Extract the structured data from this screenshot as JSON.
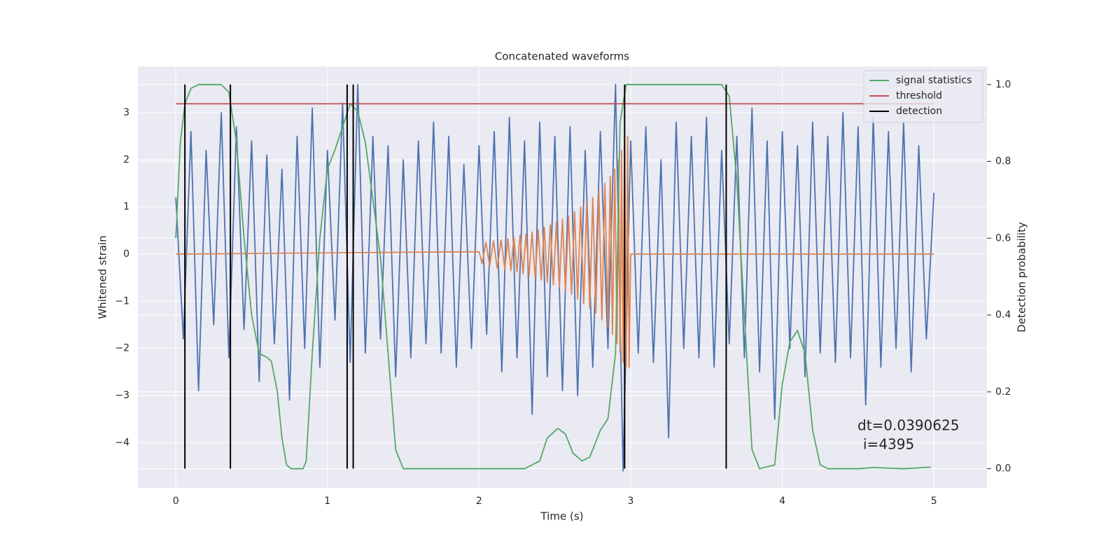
{
  "chart_data": {
    "type": "line",
    "title": "Concatenated waveforms",
    "xlabel": "Time (s)",
    "ylabel": "Whitened strain",
    "y2label": "Detection probability",
    "xlim": [
      -0.25,
      5.35
    ],
    "xticks": [
      0,
      1,
      2,
      3,
      4,
      5
    ],
    "ylim": [
      -4.96,
      3.98
    ],
    "yticks": [
      {
        "value": -4,
        "label": "−4"
      },
      {
        "value": -3,
        "label": "−3"
      },
      {
        "value": -2,
        "label": "−2"
      },
      {
        "value": -1,
        "label": "−1"
      },
      0,
      1,
      2,
      3
    ],
    "y2lim": [
      -0.05,
      1.047
    ],
    "y2ticks": [
      {
        "value": 0,
        "label": "0.0"
      },
      0.2,
      0.4,
      0.6,
      0.8,
      {
        "value": 1,
        "label": "1.0"
      }
    ],
    "grid": true,
    "legend": "upper right",
    "lines": [
      {
        "color": "#4c72b0",
        "x": [
          0,
          0.05,
          0.1,
          0.15,
          0.2,
          0.25,
          0.3,
          0.35,
          0.4,
          0.45,
          0.5,
          0.55,
          0.6,
          0.65,
          0.7,
          0.75,
          0.8,
          0.85,
          0.9,
          0.95,
          1,
          1.05,
          1.1,
          1.15,
          1.2,
          1.25,
          1.3,
          1.35,
          1.4,
          1.45,
          1.5,
          1.55,
          1.6,
          1.65,
          1.7,
          1.75,
          1.8,
          1.85,
          1.9,
          1.95,
          2,
          2.05,
          2.1,
          2.15,
          2.2,
          2.25,
          2.3,
          2.35,
          2.4,
          2.45,
          2.5,
          2.55,
          2.6,
          2.65,
          2.7,
          2.75,
          2.8,
          2.85,
          2.9,
          2.95,
          3,
          3.05,
          3.1,
          3.15,
          3.2,
          3.25,
          3.3,
          3.35,
          3.4,
          3.45,
          3.5,
          3.55,
          3.6,
          3.65,
          3.7,
          3.75,
          3.8,
          3.85,
          3.9,
          3.95,
          4,
          4.05,
          4.1,
          4.15,
          4.2,
          4.25,
          4.3,
          4.35,
          4.4,
          4.45,
          4.5,
          4.55,
          4.6,
          4.65,
          4.7,
          4.75,
          4.8,
          4.85,
          4.9,
          4.95,
          5
        ],
        "values": [
          1.2,
          -1.8,
          2.6,
          -2.9,
          2.2,
          -1.5,
          3.0,
          -2.2,
          2.7,
          -1.6,
          2.4,
          -2.7,
          2.1,
          -1.9,
          1.8,
          -3.1,
          2.5,
          -2.0,
          3.1,
          -2.4,
          2.2,
          -1.4,
          3.2,
          -2.3,
          3.6,
          -2.1,
          2.5,
          -1.8,
          2.3,
          -2.6,
          2.0,
          -2.2,
          2.4,
          -1.9,
          2.8,
          -2.1,
          2.5,
          -2.4,
          1.9,
          -2.0,
          2.3,
          -1.7,
          2.6,
          -2.5,
          2.9,
          -2.2,
          2.4,
          -3.4,
          2.8,
          -2.6,
          2.5,
          -2.9,
          2.7,
          -3.0,
          2.2,
          -2.4,
          2.6,
          -2.0,
          3.6,
          -4.6,
          2.4,
          -2.1,
          2.7,
          -2.3,
          2.0,
          -3.9,
          2.8,
          -2.0,
          2.5,
          -2.2,
          2.9,
          -2.4,
          2.2,
          -1.9,
          2.5,
          -2.2,
          3.1,
          -2.5,
          2.4,
          -3.5,
          2.6,
          -2.0,
          2.3,
          -2.6,
          2.8,
          -2.1,
          2.5,
          -2.3,
          3.0,
          -2.2,
          2.7,
          -3.2,
          2.9,
          -2.4,
          2.6,
          -2.0,
          2.8,
          -2.5,
          2.3,
          -1.8,
          1.3
        ]
      },
      {
        "color": "#dd8452",
        "x": [
          0,
          2.0,
          2.02,
          2.045,
          2.07,
          2.095,
          2.12,
          2.145,
          2.17,
          2.19,
          2.21,
          2.23,
          2.25,
          2.27,
          2.29,
          2.31,
          2.33,
          2.35,
          2.37,
          2.39,
          2.41,
          2.43,
          2.45,
          2.47,
          2.49,
          2.51,
          2.53,
          2.55,
          2.57,
          2.59,
          2.61,
          2.63,
          2.65,
          2.67,
          2.69,
          2.71,
          2.73,
          2.75,
          2.77,
          2.79,
          2.81,
          2.83,
          2.85,
          2.865,
          2.88,
          2.895,
          2.91,
          2.92,
          2.93,
          2.94,
          2.95,
          2.96,
          2.97,
          2.98,
          2.99,
          3.0,
          5
        ],
        "values": [
          0,
          0.05,
          -0.2,
          0.25,
          -0.25,
          0.28,
          -0.3,
          0.3,
          -0.32,
          0.33,
          -0.35,
          0.36,
          -0.38,
          0.4,
          -0.42,
          0.43,
          -0.45,
          0.47,
          -0.5,
          0.52,
          -0.55,
          0.57,
          -0.6,
          0.62,
          -0.65,
          0.68,
          -0.7,
          0.74,
          -0.78,
          0.8,
          -0.85,
          0.9,
          -0.95,
          1.0,
          -1.05,
          1.1,
          -1.15,
          1.2,
          -1.25,
          1.35,
          -1.4,
          1.5,
          -1.55,
          1.65,
          -1.7,
          1.8,
          -1.9,
          2.0,
          -2.1,
          2.2,
          -2.3,
          2.4,
          -2.4,
          2.5,
          -2.4,
          0,
          0
        ]
      }
    ],
    "series": [
      {
        "name": "signal statistics",
        "color": "#55a868",
        "axis": "y2",
        "x": [
          0,
          0.03,
          0.06,
          0.1,
          0.15,
          0.3,
          0.35,
          0.4,
          0.45,
          0.5,
          0.55,
          0.6,
          0.63,
          0.67,
          0.7,
          0.73,
          0.76,
          0.84,
          0.86,
          0.9,
          0.95,
          1.0,
          1.05,
          1.1,
          1.15,
          1.2,
          1.25,
          1.3,
          1.35,
          1.4,
          1.45,
          1.5,
          2.3,
          2.4,
          2.45,
          2.52,
          2.57,
          2.62,
          2.68,
          2.73,
          2.8,
          2.85,
          2.9,
          2.93,
          2.97,
          3.6,
          3.65,
          3.7,
          3.75,
          3.8,
          3.85,
          3.95,
          4.0,
          4.05,
          4.1,
          4.15,
          4.2,
          4.25,
          4.3,
          4.5,
          4.6,
          4.8,
          4.98
        ],
        "values": [
          0.6,
          0.85,
          0.95,
          0.99,
          1.0,
          1.0,
          0.98,
          0.85,
          0.6,
          0.4,
          0.3,
          0.29,
          0.28,
          0.2,
          0.08,
          0.01,
          0.0,
          0.0,
          0.02,
          0.3,
          0.6,
          0.78,
          0.83,
          0.89,
          0.95,
          0.93,
          0.85,
          0.7,
          0.55,
          0.3,
          0.05,
          0.0,
          0.0,
          0.02,
          0.08,
          0.105,
          0.09,
          0.04,
          0.02,
          0.03,
          0.1,
          0.13,
          0.3,
          0.9,
          1.0,
          1.0,
          0.97,
          0.75,
          0.4,
          0.05,
          0.0,
          0.01,
          0.22,
          0.33,
          0.36,
          0.3,
          0.1,
          0.01,
          0.0,
          0.0,
          0.003,
          0.0,
          0.004
        ]
      },
      {
        "name": "threshold",
        "color": "#c44e52",
        "axis": "y2",
        "x": [
          0,
          5
        ],
        "values": [
          0.95,
          0.95
        ]
      },
      {
        "name": "detection",
        "color": "#000000",
        "axis": "y2",
        "x": [
          0.06,
          0.36,
          1.13,
          1.17,
          2.96,
          3.63
        ],
        "span": [
          0,
          1
        ]
      }
    ],
    "annotation": [
      "dt=0.0390625",
      "i=4395"
    ]
  }
}
